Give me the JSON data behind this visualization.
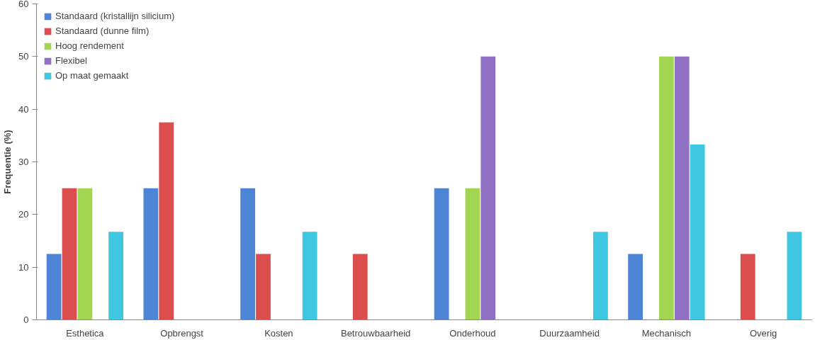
{
  "chart_data": {
    "type": "bar",
    "ylabel": "Frequentie (%)",
    "categories": [
      "Esthetica",
      "Opbrengst",
      "Kosten",
      "Betrouwbaarheid",
      "Onderhoud",
      "Duurzaamheid",
      "Mechanisch",
      "Overig"
    ],
    "series": [
      {
        "name": "Standaard (kristallijn silicium)",
        "color": "#4f85d6",
        "values": [
          12.5,
          25,
          25,
          0,
          25,
          0,
          12.5,
          0
        ]
      },
      {
        "name": "Standaard (dunne film)",
        "color": "#dc4d4d",
        "values": [
          25,
          37.5,
          12.5,
          12.5,
          0,
          0,
          0,
          12.5
        ]
      },
      {
        "name": "Hoog rendement",
        "color": "#a2d652",
        "values": [
          25,
          0,
          0,
          0,
          25,
          0,
          50,
          0
        ]
      },
      {
        "name": "Flexibel",
        "color": "#8f70c2",
        "values": [
          0,
          0,
          0,
          0,
          50,
          0,
          50,
          0
        ]
      },
      {
        "name": "Op maat gemaakt",
        "color": "#3fc6e0",
        "values": [
          16.7,
          0,
          16.7,
          0,
          0,
          16.7,
          33.3,
          16.7
        ]
      }
    ],
    "ylim": [
      0,
      60
    ],
    "yticks": [
      0,
      10,
      20,
      30,
      40,
      50,
      60
    ],
    "grid": false,
    "legend": "top left"
  }
}
